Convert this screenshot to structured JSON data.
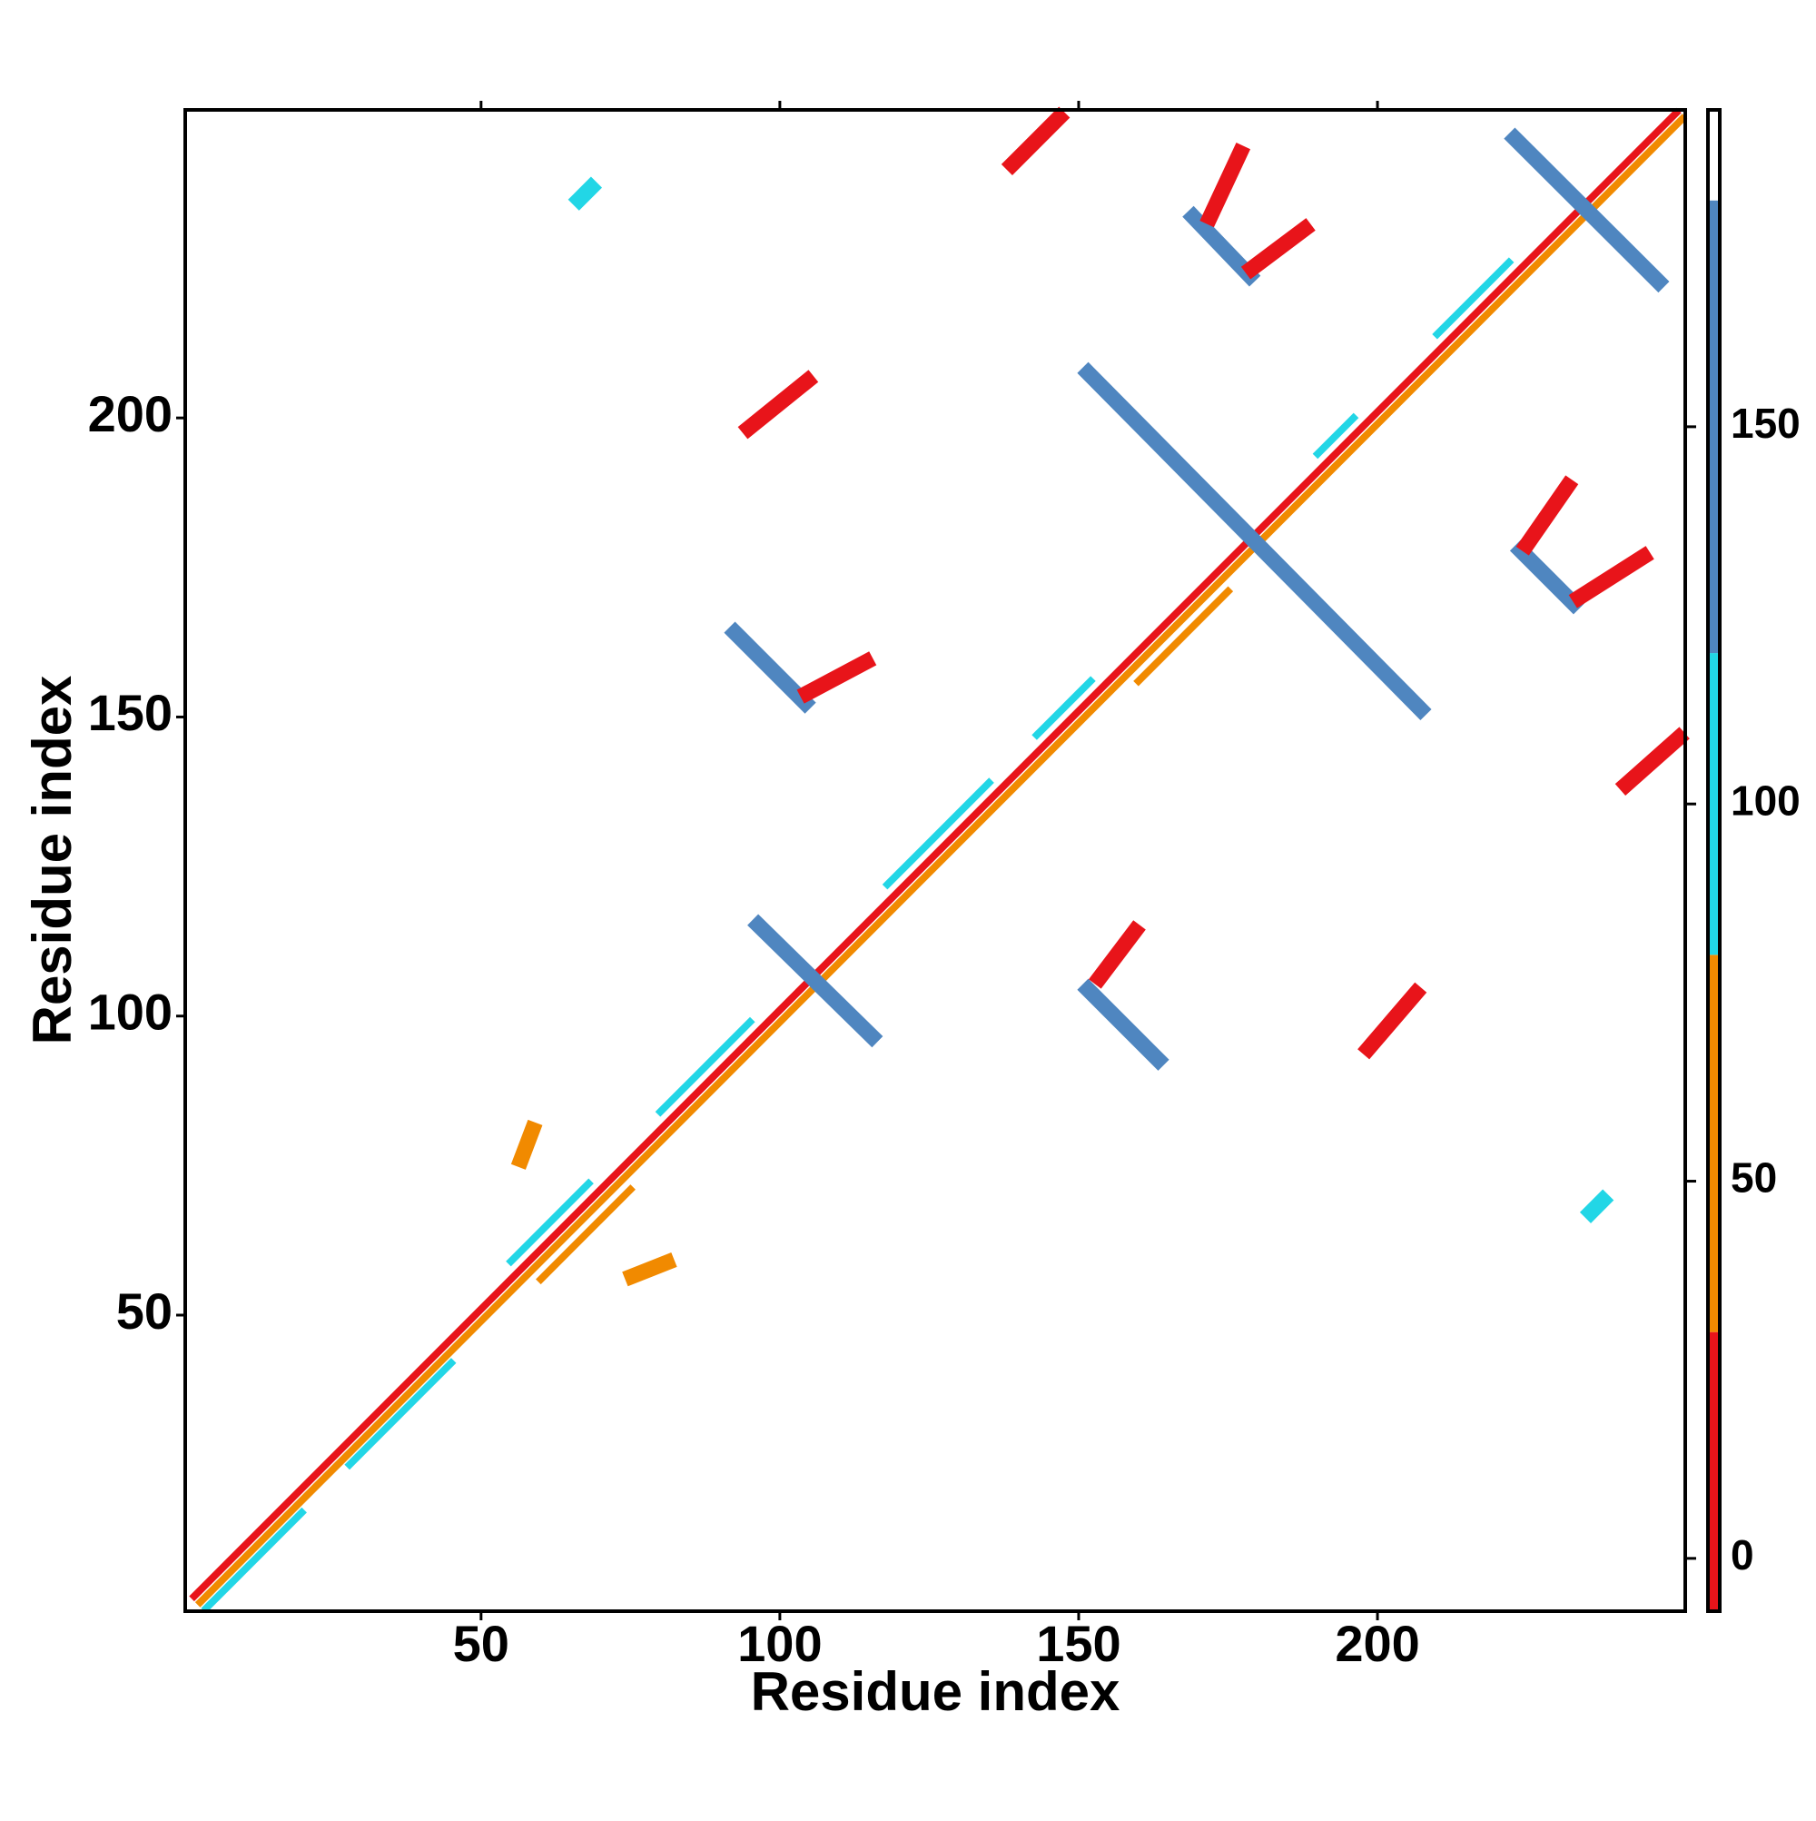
{
  "chart_data": {
    "type": "heatmap",
    "xlabel": "Residue index",
    "ylabel": "Residue index",
    "xlim": [
      0.5,
      251.5
    ],
    "ylim": [
      0.5,
      251.5
    ],
    "xticks": [
      50,
      100,
      150,
      200
    ],
    "yticks": [
      50,
      100,
      150,
      200
    ],
    "colorbar": {
      "lim": [
        -7,
        192
      ],
      "ticks": [
        0,
        50,
        100,
        150
      ],
      "levels": [
        -7,
        30,
        80,
        120,
        180,
        192
      ],
      "colors": [
        "#e8141a",
        "#f18a00",
        "#22d6e6",
        "#4f86c0",
        "#ffffff"
      ]
    },
    "bands": [
      {
        "x": [
          2,
          250
        ],
        "y": [
          3,
          251
        ],
        "value": 10
      },
      {
        "x": [
          3,
          251
        ],
        "y": [
          2,
          250
        ],
        "value": 55
      },
      {
        "x": [
          4,
          20
        ],
        "y": [
          1,
          17
        ],
        "value": 95
      },
      {
        "x": [
          28,
          45
        ],
        "y": [
          25,
          42
        ],
        "value": 95
      },
      {
        "x": [
          55,
          68
        ],
        "y": [
          59,
          72
        ],
        "value": 95
      },
      {
        "x": [
          80,
          95
        ],
        "y": [
          84,
          99
        ],
        "value": 95
      },
      {
        "x": [
          118,
          135
        ],
        "y": [
          122,
          139
        ],
        "value": 95
      },
      {
        "x": [
          143,
          152
        ],
        "y": [
          147,
          156
        ],
        "value": 95
      },
      {
        "x": [
          190,
          196
        ],
        "y": [
          194,
          200
        ],
        "value": 95
      },
      {
        "x": [
          210,
          222
        ],
        "y": [
          214,
          226
        ],
        "value": 95
      },
      {
        "x": [
          60,
          75
        ],
        "y": [
          56,
          71
        ],
        "value": 55
      },
      {
        "x": [
          160,
          175
        ],
        "y": [
          156,
          171
        ],
        "value": 55
      }
    ],
    "strips": [
      {
        "x": [
          151.6,
          207.2
        ],
        "y": [
          207.5,
          151.3
        ],
        "value": 150
      },
      {
        "x": [
          223,
          247
        ],
        "y": [
          246.7,
          222.8
        ],
        "value": 150
      },
      {
        "x": [
          96.4,
          115.4
        ],
        "y": [
          115.2,
          96.6
        ],
        "value": 130
      },
      {
        "x": [
          92.5,
          104.2
        ],
        "y": [
          164.1,
          152.4
        ],
        "value": 140
      },
      {
        "x": [
          151.6,
          163.3
        ],
        "y": [
          104.4,
          92.7
        ],
        "value": 150
      },
      {
        "x": [
          169.2,
          178.6
        ],
        "y": [
          233.6,
          223.8
        ],
        "value": 150
      },
      {
        "x": [
          224,
          232.8
        ],
        "y": [
          177.8,
          169
        ],
        "value": 150
      },
      {
        "x": [
          172,
          177
        ],
        "y": [
          233.6,
          244.3
        ],
        "value": 20
      },
      {
        "x": [
          179,
          187.8
        ],
        "y": [
          225,
          231.6
        ],
        "value": 20
      },
      {
        "x": [
          225,
          231.8
        ],
        "y": [
          178.8,
          188.6
        ],
        "value": 20
      },
      {
        "x": [
          233.8,
          244.5
        ],
        "y": [
          170,
          176.8
        ],
        "value": 15
      },
      {
        "x": [
          104.6,
          114.4
        ],
        "y": [
          154,
          159.2
        ],
        "value": 20
      },
      {
        "x": [
          153.5,
          159.4
        ],
        "y": [
          106.4,
          114.2
        ],
        "value": 25
      },
      {
        "x": [
          138.9,
          146.7
        ],
        "y": [
          242.4,
          250.2
        ],
        "value": 0
      },
      {
        "x": [
          241.6,
          250.4
        ],
        "y": [
          138.7,
          146.5
        ],
        "value": 0
      },
      {
        "x": [
          94.8,
          104.6
        ],
        "y": [
          198.3,
          206.2
        ],
        "value": 20
      },
      {
        "x": [
          75.3,
          81.1
        ],
        "y": [
          56.5,
          58.8
        ],
        "value": 55
      },
      {
        "x": [
          56.7,
          58.6
        ],
        "y": [
          76,
          81
        ],
        "value": 55
      },
      {
        "x": [
          198.5,
          206.4
        ],
        "y": [
          94.6,
          103.8
        ],
        "value": 25
      },
      {
        "x": [
          66.4,
          68.4
        ],
        "y": [
          236.5,
          238.5
        ],
        "value": 95
      },
      {
        "x": [
          235.7,
          237.7
        ],
        "y": [
          67.2,
          69.2
        ],
        "value": 95
      }
    ]
  }
}
